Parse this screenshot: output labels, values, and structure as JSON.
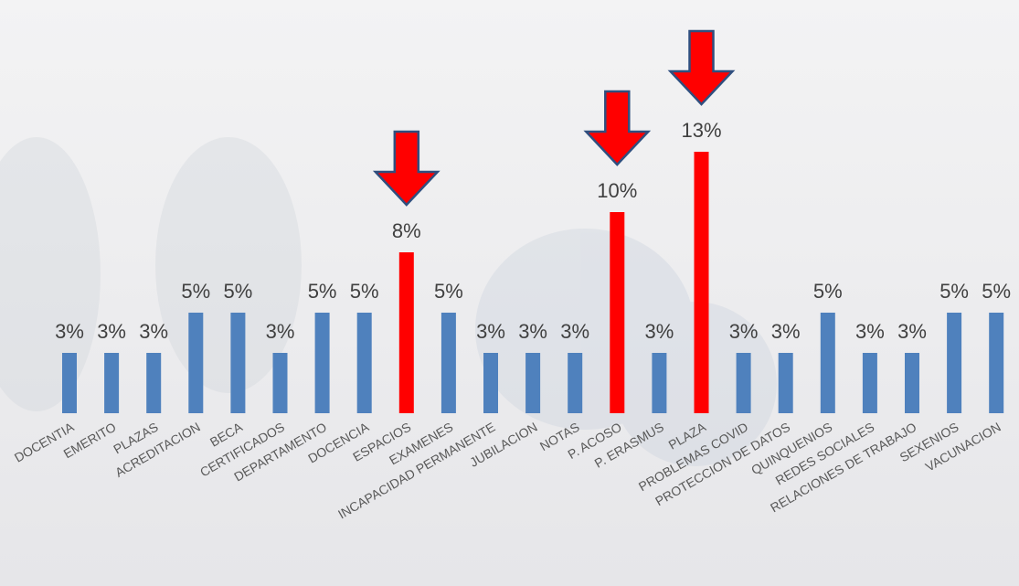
{
  "chart_data": {
    "type": "bar",
    "categories": [
      "DOCENTIA",
      "EMERITO",
      "PLAZAS",
      "ACREDITACION",
      "BECA",
      "CERTIFICADOS",
      "DEPARTAMENTO",
      "DOCENCIA",
      "ESPACIOS",
      "EXAMENES",
      "INCAPACIDAD PERMANENTE",
      "JUBILACION",
      "NOTAS",
      "P. ACOSO",
      "P. ERASMUS",
      "PLAZA",
      "PROBLEMAS COVID",
      "PROTECCION DE DATOS",
      "QUINQUENIOS",
      "REDES SOCIALES",
      "RELACIONES DE TRABAJO",
      "SEXENIOS",
      "VACUNACION"
    ],
    "values": [
      3,
      3,
      3,
      5,
      5,
      3,
      5,
      5,
      8,
      5,
      3,
      3,
      3,
      10,
      3,
      13,
      3,
      3,
      5,
      3,
      3,
      5,
      5
    ],
    "value_labels": [
      "3%",
      "3%",
      "3%",
      "5%",
      "5%",
      "3%",
      "5%",
      "5%",
      "8%",
      "5%",
      "3%",
      "3%",
      "3%",
      "10%",
      "3%",
      "13%",
      "3%",
      "3%",
      "5%",
      "3%",
      "3%",
      "5%",
      "5%"
    ],
    "colors": [
      "#4f81bd",
      "#4f81bd",
      "#4f81bd",
      "#4f81bd",
      "#4f81bd",
      "#4f81bd",
      "#4f81bd",
      "#4f81bd",
      "#ff0000",
      "#4f81bd",
      "#4f81bd",
      "#4f81bd",
      "#4f81bd",
      "#ff0000",
      "#4f81bd",
      "#ff0000",
      "#4f81bd",
      "#4f81bd",
      "#4f81bd",
      "#4f81bd",
      "#4f81bd",
      "#4f81bd",
      "#4f81bd"
    ],
    "highlight_color": "#ff0000"
  }
}
